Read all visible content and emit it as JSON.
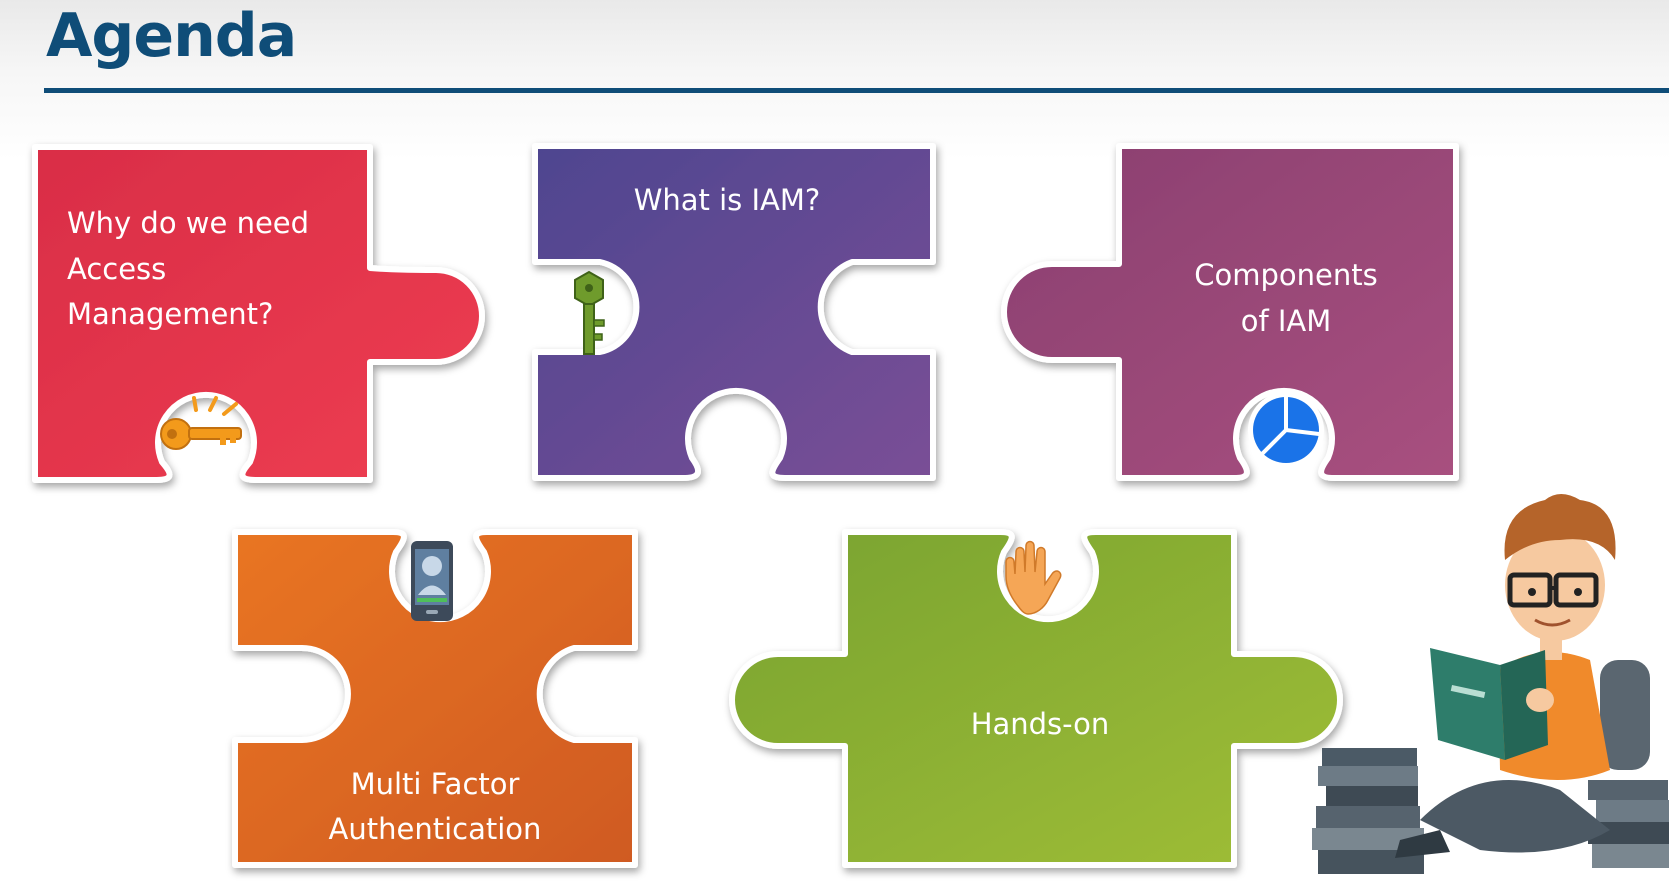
{
  "slide": {
    "title": "Agenda"
  },
  "pieces": [
    {
      "id": "access",
      "lines": [
        "Why do we need",
        "Access",
        "Management?"
      ],
      "icon": "key-icon",
      "color": "#e5354c"
    },
    {
      "id": "what-iam",
      "lines": [
        "What is IAM?"
      ],
      "icon": "green-key-icon",
      "color": "#5e4b94"
    },
    {
      "id": "components",
      "lines": [
        "Components",
        "of IAM"
      ],
      "icon": "pie-chart-icon",
      "color": "#9a4778"
    },
    {
      "id": "mfa",
      "lines": [
        "Multi Factor",
        "Authentication"
      ],
      "icon": "phone-icon",
      "color": "#dc6a24"
    },
    {
      "id": "hands-on",
      "lines": [
        "Hands-on"
      ],
      "icon": "hand-icon",
      "color": "#8aae35"
    }
  ],
  "illustration": "student-reading-icon"
}
